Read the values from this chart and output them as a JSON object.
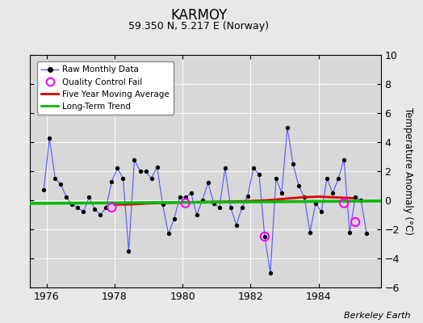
{
  "title": "KARMOY",
  "subtitle": "59.350 N, 5.217 E (Norway)",
  "ylabel": "Temperature Anomaly (°C)",
  "credit": "Berkeley Earth",
  "bg_color": "#e8e8e8",
  "plot_bg_color": "#d8d8d8",
  "ylim": [
    -6,
    10
  ],
  "yticks": [
    -6,
    -4,
    -2,
    0,
    2,
    4,
    6,
    8,
    10
  ],
  "xlim": [
    1975.5,
    1985.83
  ],
  "xticks": [
    1976,
    1978,
    1980,
    1982,
    1984
  ],
  "raw_data": [
    [
      1975.917,
      0.7
    ],
    [
      1976.083,
      4.3
    ],
    [
      1976.25,
      1.5
    ],
    [
      1976.417,
      1.1
    ],
    [
      1976.583,
      0.2
    ],
    [
      1976.75,
      -0.3
    ],
    [
      1976.917,
      -0.5
    ],
    [
      1977.083,
      -0.8
    ],
    [
      1977.25,
      0.2
    ],
    [
      1977.417,
      -0.6
    ],
    [
      1977.583,
      -1.0
    ],
    [
      1977.75,
      -0.5
    ],
    [
      1977.917,
      1.3
    ],
    [
      1978.083,
      2.2
    ],
    [
      1978.25,
      1.5
    ],
    [
      1978.417,
      -3.5
    ],
    [
      1978.583,
      2.8
    ],
    [
      1978.75,
      2.0
    ],
    [
      1978.917,
      2.0
    ],
    [
      1979.083,
      1.5
    ],
    [
      1979.25,
      2.3
    ],
    [
      1979.417,
      -0.3
    ],
    [
      1979.583,
      -2.3
    ],
    [
      1979.75,
      -1.3
    ],
    [
      1979.917,
      0.2
    ],
    [
      1980.083,
      0.2
    ],
    [
      1980.25,
      0.5
    ],
    [
      1980.417,
      -1.0
    ],
    [
      1980.583,
      0.0
    ],
    [
      1980.75,
      1.2
    ],
    [
      1980.917,
      -0.2
    ],
    [
      1981.083,
      -0.5
    ],
    [
      1981.25,
      2.2
    ],
    [
      1981.417,
      -0.5
    ],
    [
      1981.583,
      -1.7
    ],
    [
      1981.75,
      -0.5
    ],
    [
      1981.917,
      0.3
    ],
    [
      1982.083,
      2.2
    ],
    [
      1982.25,
      1.8
    ],
    [
      1982.417,
      -2.5
    ],
    [
      1982.583,
      -5.0
    ],
    [
      1982.75,
      1.5
    ],
    [
      1982.917,
      0.5
    ],
    [
      1983.083,
      5.0
    ],
    [
      1983.25,
      2.5
    ],
    [
      1983.417,
      1.0
    ],
    [
      1983.583,
      0.2
    ],
    [
      1983.75,
      -2.2
    ],
    [
      1983.917,
      -0.2
    ],
    [
      1984.083,
      -0.8
    ],
    [
      1984.25,
      1.5
    ],
    [
      1984.417,
      0.5
    ],
    [
      1984.583,
      1.5
    ],
    [
      1984.75,
      2.8
    ],
    [
      1984.917,
      -2.2
    ],
    [
      1985.083,
      0.2
    ],
    [
      1985.25,
      0.0
    ],
    [
      1985.417,
      -2.3
    ]
  ],
  "qc_fails": [
    [
      1977.917,
      -0.5
    ],
    [
      1980.083,
      -0.2
    ],
    [
      1982.417,
      -2.5
    ],
    [
      1984.75,
      -0.2
    ],
    [
      1985.083,
      -1.5
    ]
  ],
  "moving_avg_x": [
    1978.0,
    1978.5,
    1979.0,
    1979.5,
    1980.0,
    1980.5,
    1981.0,
    1981.5,
    1982.0,
    1982.5,
    1983.0,
    1983.5,
    1984.0,
    1984.5,
    1985.0
  ],
  "moving_avg_y": [
    -0.3,
    -0.28,
    -0.22,
    -0.18,
    -0.15,
    -0.12,
    -0.1,
    -0.08,
    -0.05,
    0.0,
    0.1,
    0.2,
    0.25,
    0.2,
    0.15
  ],
  "trend_x": [
    1975.5,
    1985.83
  ],
  "trend_y": [
    -0.22,
    -0.05
  ],
  "line_color": "#5555ff",
  "marker_color": "#000000",
  "qc_color": "#ff00ff",
  "moving_avg_color": "#dd0000",
  "trend_color": "#00bb00"
}
